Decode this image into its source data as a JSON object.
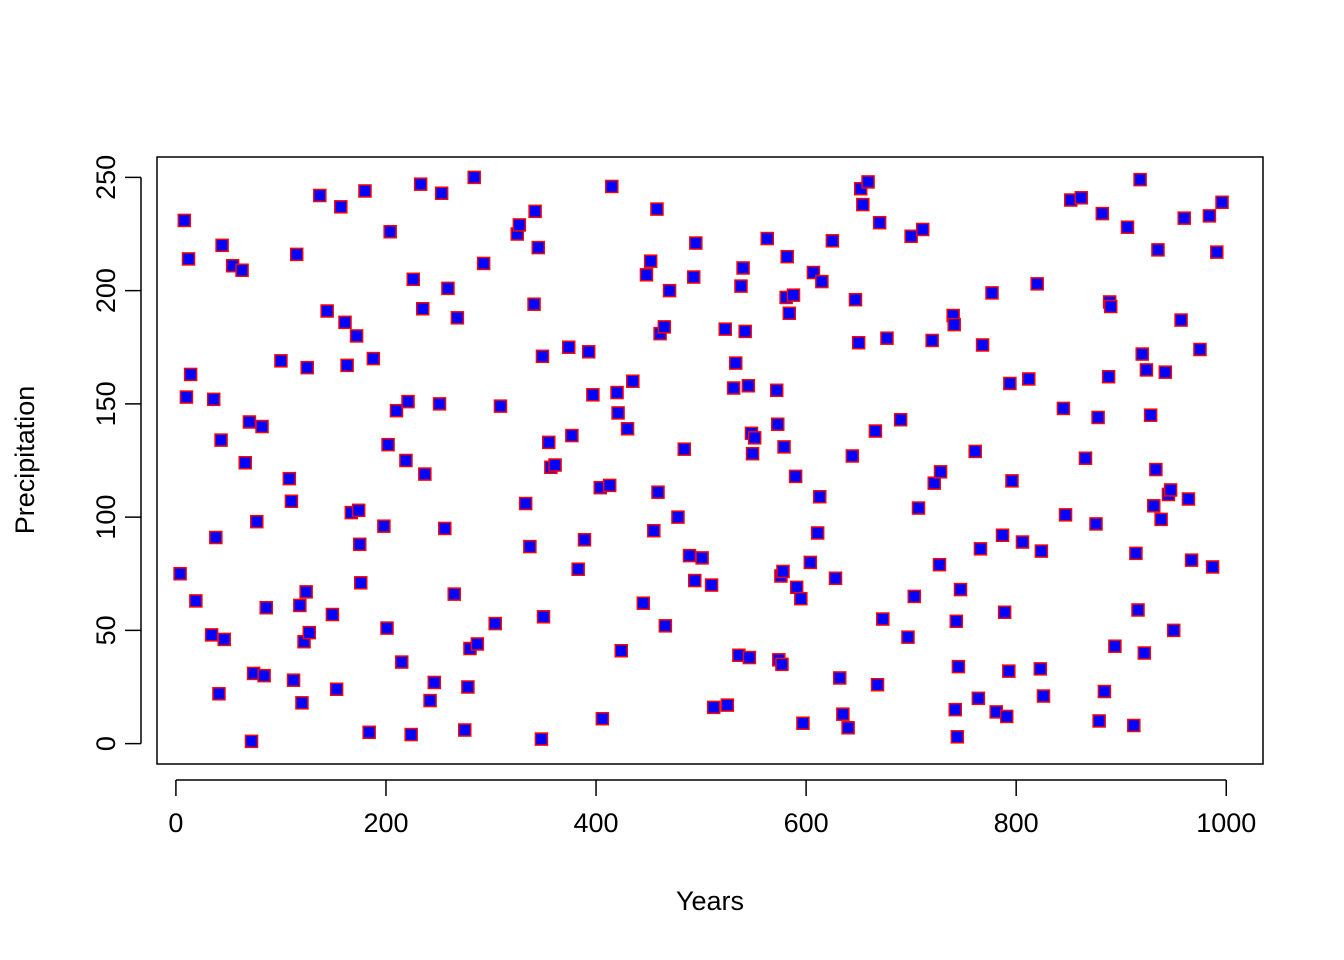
{
  "chart_data": {
    "type": "scatter",
    "xlabel": "Years",
    "ylabel": "Precipitation",
    "xlim": [
      -18,
      1035
    ],
    "ylim": [
      -9,
      259
    ],
    "x_ticks": [
      0,
      200,
      400,
      600,
      800,
      1000
    ],
    "y_ticks": [
      0,
      50,
      100,
      150,
      200,
      250
    ],
    "grid": false,
    "legend": "none",
    "marker": {
      "shape": "square",
      "fill": "#0000ff",
      "stroke": "#ff0000"
    },
    "points": [
      [
        4,
        75
      ],
      [
        8,
        231
      ],
      [
        10,
        153
      ],
      [
        12,
        214
      ],
      [
        14,
        163
      ],
      [
        19,
        63
      ],
      [
        34,
        48
      ],
      [
        36,
        152
      ],
      [
        38,
        91
      ],
      [
        41,
        22
      ],
      [
        43,
        134
      ],
      [
        44,
        220
      ],
      [
        46,
        46
      ],
      [
        54,
        211
      ],
      [
        63,
        209
      ],
      [
        66,
        124
      ],
      [
        70,
        142
      ],
      [
        72,
        1
      ],
      [
        74,
        31
      ],
      [
        77,
        98
      ],
      [
        82,
        140
      ],
      [
        84,
        30
      ],
      [
        86,
        60
      ],
      [
        100,
        169
      ],
      [
        108,
        117
      ],
      [
        110,
        107
      ],
      [
        112,
        28
      ],
      [
        115,
        216
      ],
      [
        118,
        61
      ],
      [
        120,
        18
      ],
      [
        122,
        45
      ],
      [
        124,
        67
      ],
      [
        125,
        166
      ],
      [
        127,
        49
      ],
      [
        137,
        242
      ],
      [
        144,
        191
      ],
      [
        149,
        57
      ],
      [
        153,
        24
      ],
      [
        157,
        237
      ],
      [
        161,
        186
      ],
      [
        163,
        167
      ],
      [
        167,
        102
      ],
      [
        172,
        180
      ],
      [
        174,
        103
      ],
      [
        175,
        88
      ],
      [
        176,
        71
      ],
      [
        180,
        244
      ],
      [
        184,
        5
      ],
      [
        188,
        170
      ],
      [
        198,
        96
      ],
      [
        201,
        51
      ],
      [
        202,
        132
      ],
      [
        204,
        226
      ],
      [
        210,
        147
      ],
      [
        215,
        36
      ],
      [
        219,
        125
      ],
      [
        221,
        151
      ],
      [
        224,
        4
      ],
      [
        226,
        205
      ],
      [
        233,
        247
      ],
      [
        235,
        192
      ],
      [
        237,
        119
      ],
      [
        242,
        19
      ],
      [
        246,
        27
      ],
      [
        251,
        150
      ],
      [
        253,
        243
      ],
      [
        256,
        95
      ],
      [
        259,
        201
      ],
      [
        265,
        66
      ],
      [
        268,
        188
      ],
      [
        275,
        6
      ],
      [
        278,
        25
      ],
      [
        280,
        42
      ],
      [
        284,
        250
      ],
      [
        287,
        44
      ],
      [
        293,
        212
      ],
      [
        304,
        53
      ],
      [
        309,
        149
      ],
      [
        325,
        225
      ],
      [
        327,
        229
      ],
      [
        333,
        106
      ],
      [
        337,
        87
      ],
      [
        341,
        194
      ],
      [
        342,
        235
      ],
      [
        345,
        219
      ],
      [
        348,
        2
      ],
      [
        349,
        171
      ],
      [
        350,
        56
      ],
      [
        355,
        133
      ],
      [
        357,
        122
      ],
      [
        361,
        123
      ],
      [
        374,
        175
      ],
      [
        377,
        136
      ],
      [
        383,
        77
      ],
      [
        389,
        90
      ],
      [
        393,
        173
      ],
      [
        397,
        154
      ],
      [
        404,
        113
      ],
      [
        406,
        11
      ],
      [
        413,
        114
      ],
      [
        415,
        246
      ],
      [
        420,
        155
      ],
      [
        421,
        146
      ],
      [
        424,
        41
      ],
      [
        430,
        139
      ],
      [
        435,
        160
      ],
      [
        445,
        62
      ],
      [
        448,
        207
      ],
      [
        452,
        213
      ],
      [
        455,
        94
      ],
      [
        458,
        236
      ],
      [
        459,
        111
      ],
      [
        461,
        181
      ],
      [
        465,
        184
      ],
      [
        466,
        52
      ],
      [
        470,
        200
      ],
      [
        478,
        100
      ],
      [
        484,
        130
      ],
      [
        489,
        83
      ],
      [
        493,
        206
      ],
      [
        494,
        72
      ],
      [
        495,
        221
      ],
      [
        501,
        82
      ],
      [
        510,
        70
      ],
      [
        512,
        16
      ],
      [
        523,
        183
      ],
      [
        525,
        17
      ],
      [
        531,
        157
      ],
      [
        533,
        168
      ],
      [
        536,
        39
      ],
      [
        538,
        202
      ],
      [
        540,
        210
      ],
      [
        542,
        182
      ],
      [
        545,
        158
      ],
      [
        546,
        38
      ],
      [
        548,
        137
      ],
      [
        549,
        128
      ],
      [
        551,
        135
      ],
      [
        563,
        223
      ],
      [
        572,
        156
      ],
      [
        573,
        141
      ],
      [
        574,
        37
      ],
      [
        576,
        74
      ],
      [
        577,
        35
      ],
      [
        578,
        76
      ],
      [
        579,
        131
      ],
      [
        581,
        197
      ],
      [
        582,
        215
      ],
      [
        584,
        190
      ],
      [
        588,
        198
      ],
      [
        590,
        118
      ],
      [
        591,
        69
      ],
      [
        595,
        64
      ],
      [
        597,
        9
      ],
      [
        604,
        80
      ],
      [
        607,
        208
      ],
      [
        611,
        93
      ],
      [
        613,
        109
      ],
      [
        615,
        204
      ],
      [
        625,
        222
      ],
      [
        628,
        73
      ],
      [
        632,
        29
      ],
      [
        635,
        13
      ],
      [
        640,
        7
      ],
      [
        644,
        127
      ],
      [
        647,
        196
      ],
      [
        650,
        177
      ],
      [
        652,
        245
      ],
      [
        654,
        238
      ],
      [
        659,
        248
      ],
      [
        666,
        138
      ],
      [
        668,
        26
      ],
      [
        670,
        230
      ],
      [
        673,
        55
      ],
      [
        677,
        179
      ],
      [
        690,
        143
      ],
      [
        697,
        47
      ],
      [
        700,
        224
      ],
      [
        703,
        65
      ],
      [
        707,
        104
      ],
      [
        711,
        227
      ],
      [
        720,
        178
      ],
      [
        722,
        115
      ],
      [
        727,
        79
      ],
      [
        728,
        120
      ],
      [
        740,
        189
      ],
      [
        741,
        185
      ],
      [
        742,
        15
      ],
      [
        743,
        54
      ],
      [
        744,
        3
      ],
      [
        745,
        34
      ],
      [
        747,
        68
      ],
      [
        761,
        129
      ],
      [
        764,
        20
      ],
      [
        766,
        86
      ],
      [
        768,
        176
      ],
      [
        777,
        199
      ],
      [
        781,
        14
      ],
      [
        787,
        92
      ],
      [
        789,
        58
      ],
      [
        791,
        12
      ],
      [
        793,
        32
      ],
      [
        794,
        159
      ],
      [
        796,
        116
      ],
      [
        806,
        89
      ],
      [
        812,
        161
      ],
      [
        820,
        203
      ],
      [
        823,
        33
      ],
      [
        824,
        85
      ],
      [
        826,
        21
      ],
      [
        845,
        148
      ],
      [
        847,
        101
      ],
      [
        852,
        240
      ],
      [
        862,
        241
      ],
      [
        866,
        126
      ],
      [
        876,
        97
      ],
      [
        878,
        144
      ],
      [
        879,
        10
      ],
      [
        882,
        234
      ],
      [
        884,
        23
      ],
      [
        888,
        162
      ],
      [
        889,
        195
      ],
      [
        890,
        193
      ],
      [
        894,
        43
      ],
      [
        906,
        228
      ],
      [
        912,
        8
      ],
      [
        914,
        84
      ],
      [
        916,
        59
      ],
      [
        918,
        249
      ],
      [
        920,
        172
      ],
      [
        922,
        40
      ],
      [
        924,
        165
      ],
      [
        928,
        145
      ],
      [
        931,
        105
      ],
      [
        933,
        121
      ],
      [
        935,
        218
      ],
      [
        938,
        99
      ],
      [
        942,
        164
      ],
      [
        945,
        110
      ],
      [
        947,
        112
      ],
      [
        950,
        50
      ],
      [
        957,
        187
      ],
      [
        960,
        232
      ],
      [
        964,
        108
      ],
      [
        967,
        81
      ],
      [
        975,
        174
      ],
      [
        984,
        233
      ],
      [
        987,
        78
      ],
      [
        991,
        217
      ],
      [
        996,
        239
      ]
    ]
  }
}
